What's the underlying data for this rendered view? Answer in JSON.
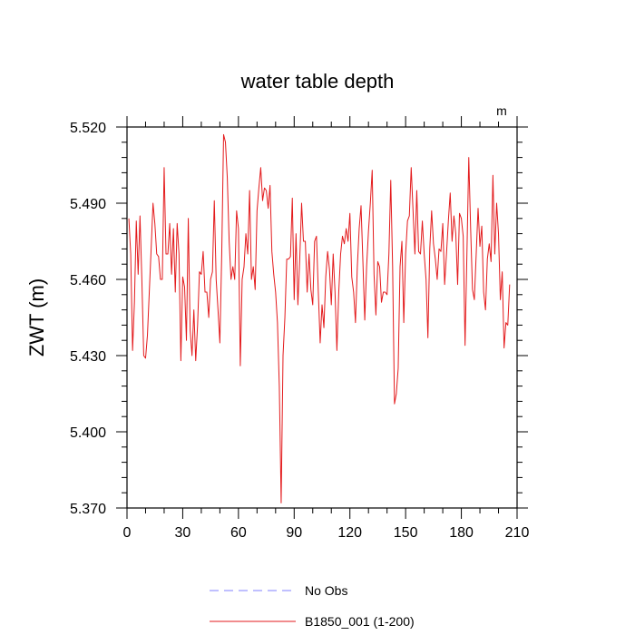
{
  "chart_data": {
    "type": "line",
    "title": "water table depth",
    "units": "m",
    "ylabel": "ZWT  (m)",
    "xlabel": "",
    "xlim": [
      0,
      210
    ],
    "ylim": [
      5.37,
      5.52
    ],
    "x_ticks": [
      0,
      30,
      60,
      90,
      120,
      150,
      180,
      210
    ],
    "x_tick_labels": [
      "0",
      "30",
      "60",
      "90",
      "120",
      "150",
      "180",
      "210"
    ],
    "y_ticks": [
      5.37,
      5.4,
      5.43,
      5.46,
      5.49,
      5.52
    ],
    "y_tick_labels": [
      "5.370",
      "5.400",
      "5.430",
      "5.460",
      "5.490",
      "5.520"
    ],
    "grid": false,
    "legend_position": "bottom",
    "series": [
      {
        "name": "No Obs",
        "color": "#8080ff",
        "dashed": true,
        "values": []
      },
      {
        "name": "B1850_001 (1-200)",
        "color": "#e31a1c",
        "dashed": false,
        "x_start": 1,
        "x_step": 1,
        "values": [
          5.484,
          5.47,
          5.432,
          5.451,
          5.483,
          5.462,
          5.485,
          5.46,
          5.43,
          5.429,
          5.438,
          5.455,
          5.472,
          5.49,
          5.482,
          5.47,
          5.469,
          5.46,
          5.46,
          5.504,
          5.47,
          5.47,
          5.482,
          5.462,
          5.48,
          5.455,
          5.482,
          5.47,
          5.428,
          5.461,
          5.457,
          5.436,
          5.484,
          5.44,
          5.43,
          5.448,
          5.428,
          5.442,
          5.463,
          5.462,
          5.471,
          5.455,
          5.455,
          5.445,
          5.46,
          5.463,
          5.491,
          5.46,
          5.448,
          5.435,
          5.47,
          5.517,
          5.514,
          5.5,
          5.475,
          5.46,
          5.465,
          5.46,
          5.487,
          5.48,
          5.426,
          5.46,
          5.465,
          5.478,
          5.47,
          5.495,
          5.46,
          5.465,
          5.456,
          5.487,
          5.496,
          5.504,
          5.491,
          5.496,
          5.495,
          5.488,
          5.497,
          5.471,
          5.462,
          5.455,
          5.443,
          5.418,
          5.372,
          5.43,
          5.445,
          5.468,
          5.468,
          5.469,
          5.492,
          5.452,
          5.478,
          5.45,
          5.468,
          5.49,
          5.475,
          5.475,
          5.455,
          5.47,
          5.456,
          5.45,
          5.475,
          5.477,
          5.455,
          5.435,
          5.45,
          5.441,
          5.461,
          5.471,
          5.464,
          5.45,
          5.47,
          5.455,
          5.432,
          5.455,
          5.47,
          5.477,
          5.474,
          5.48,
          5.475,
          5.486,
          5.461,
          5.455,
          5.443,
          5.465,
          5.48,
          5.489,
          5.467,
          5.444,
          5.465,
          5.479,
          5.49,
          5.503,
          5.462,
          5.446,
          5.467,
          5.465,
          5.451,
          5.455,
          5.455,
          5.454,
          5.47,
          5.499,
          5.465,
          5.411,
          5.415,
          5.425,
          5.465,
          5.475,
          5.443,
          5.47,
          5.483,
          5.485,
          5.504,
          5.487,
          5.47,
          5.495,
          5.471,
          5.47,
          5.483,
          5.47,
          5.46,
          5.437,
          5.472,
          5.487,
          5.474,
          5.468,
          5.46,
          5.472,
          5.471,
          5.482,
          5.458,
          5.47,
          5.483,
          5.494,
          5.475,
          5.485,
          5.478,
          5.458,
          5.486,
          5.484,
          5.477,
          5.434,
          5.47,
          5.508,
          5.48,
          5.456,
          5.452,
          5.47,
          5.488,
          5.473,
          5.481,
          5.455,
          5.448,
          5.468,
          5.474,
          5.467,
          5.501,
          5.47,
          5.49,
          5.478,
          5.452,
          5.463,
          5.433,
          5.443,
          5.442,
          5.458
        ]
      }
    ]
  }
}
